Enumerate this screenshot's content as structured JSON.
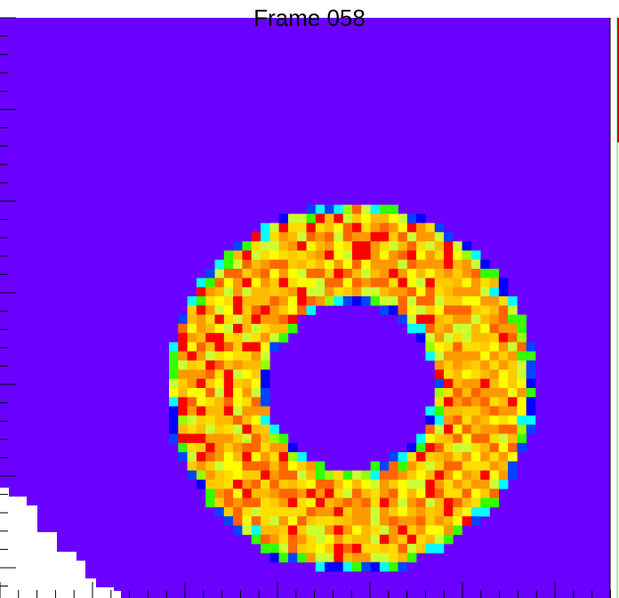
{
  "title": "Frame 058"
}
